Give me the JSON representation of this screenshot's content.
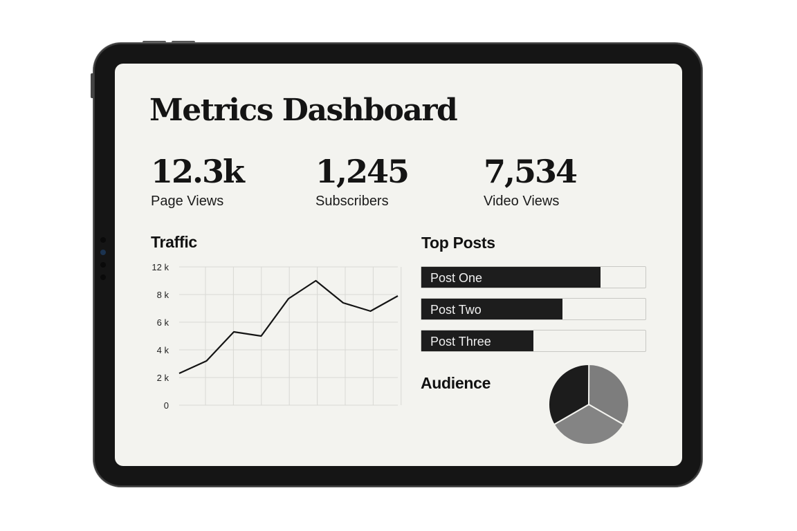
{
  "dashboard": {
    "title": "Metrics Dashboard",
    "kpis": [
      {
        "value": "12.3k",
        "label": "Page Views"
      },
      {
        "value": "1,245",
        "label": "Subscribers"
      },
      {
        "value": "7,534",
        "label": "Video Views"
      }
    ],
    "traffic": {
      "title": "Traffic"
    },
    "top_posts": {
      "title": "Top Posts",
      "items": [
        {
          "label": "Post One",
          "share": 0.8
        },
        {
          "label": "Post Two",
          "share": 0.63
        },
        {
          "label": "Post Three",
          "share": 0.5
        }
      ]
    },
    "audience": {
      "title": "Audience"
    }
  },
  "chart_data": [
    {
      "type": "line",
      "title": "Traffic",
      "x": [
        0,
        1,
        2,
        3,
        4,
        5,
        6,
        7,
        8
      ],
      "values": [
        2300,
        3200,
        5300,
        5000,
        7700,
        9000,
        7400,
        6800,
        7900
      ],
      "ylim": [
        0,
        12000
      ],
      "yticks": [
        "0",
        "2 k",
        "4 k",
        "6 k",
        "8 k",
        "12 k"
      ],
      "grid": true,
      "color": "#141414"
    },
    {
      "type": "pie",
      "title": "Audience",
      "values": [
        33.3,
        33.3,
        33.4
      ],
      "colors": [
        "#1c1c1c",
        "#7d7d7d",
        "#848484"
      ]
    }
  ]
}
